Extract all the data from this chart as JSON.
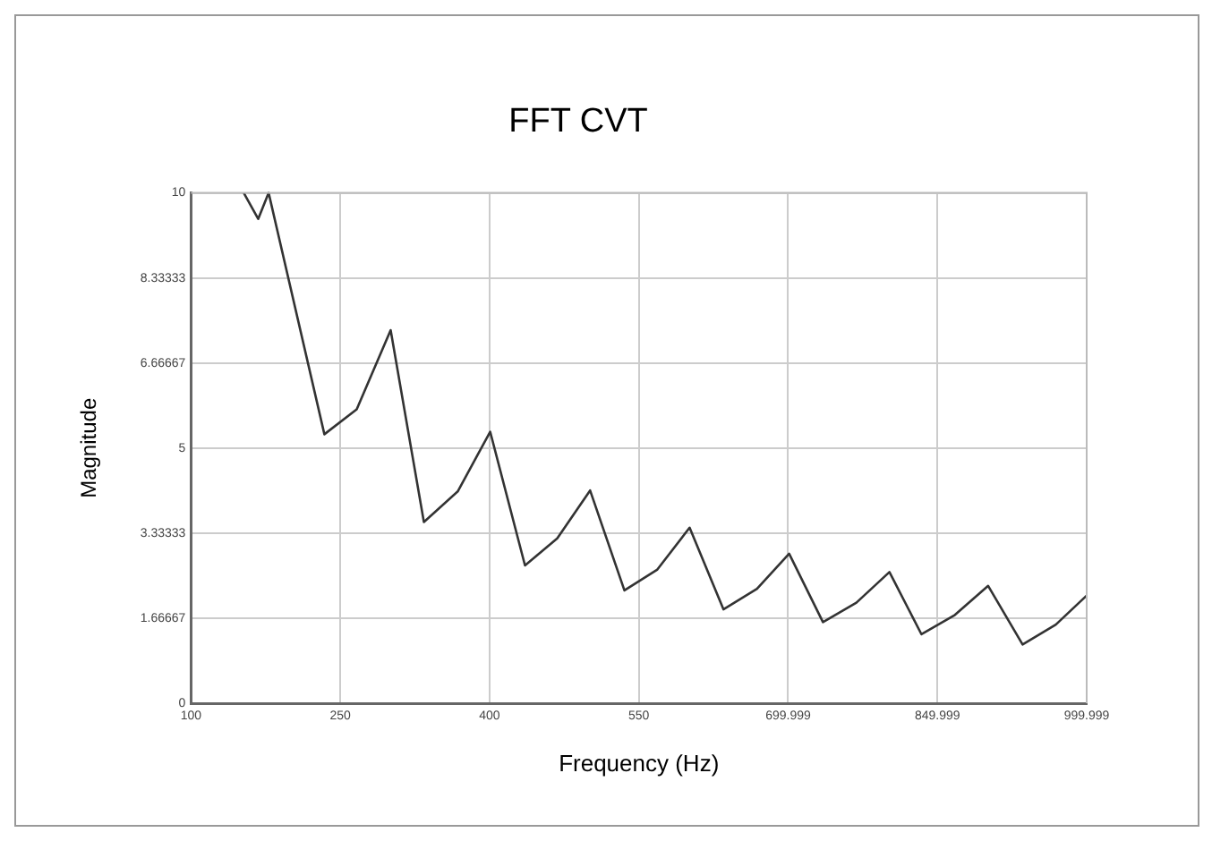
{
  "chart_data": {
    "type": "line",
    "title": "FFT CVT",
    "xlabel": "Frequency (Hz)",
    "ylabel": "Magnitude",
    "series": [
      {
        "color": "#333333",
        "x": [
          153,
          167.5,
          178,
          234,
          266.5,
          300.6,
          334,
          368,
          400.6,
          435.6,
          468,
          501,
          535.5,
          568.6,
          601,
          635,
          668.7,
          701,
          735,
          768.6,
          801.8,
          834,
          867.6,
          901,
          935.6,
          969,
          999.999
        ],
        "values": [
          10,
          9.49,
          10,
          5.27,
          5.76,
          7.31,
          3.55,
          4.15,
          5.32,
          2.7,
          3.23,
          4.17,
          2.21,
          2.62,
          3.44,
          1.84,
          2.24,
          2.93,
          1.59,
          1.97,
          2.57,
          1.35,
          1.73,
          2.3,
          1.15,
          1.54,
          2.11
        ]
      }
    ],
    "xlim": [
      100,
      999.999
    ],
    "xticks": [
      100,
      250,
      400,
      550,
      699.999,
      849.999,
      999.999
    ],
    "ylim": [
      0,
      10
    ],
    "yticks": [
      0,
      1.66667,
      3.33333,
      5,
      6.66667,
      8.33333,
      10
    ],
    "grid": true,
    "legend": false,
    "marker": "none",
    "line_style": "solid"
  }
}
